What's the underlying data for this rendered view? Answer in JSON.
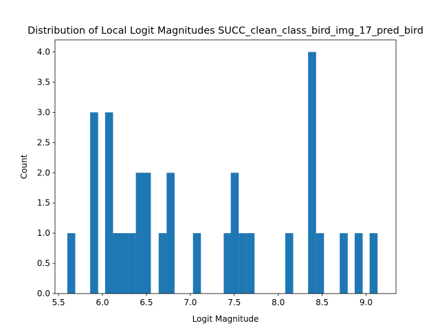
{
  "chart_data": {
    "type": "bar",
    "title": "Distribution of Local Logit Magnitudes SUCC_clean_class_bird_img_17_pred_bird",
    "xlabel": "Logit Magnitude",
    "ylabel": "Count",
    "xlim": [
      5.46,
      9.34
    ],
    "ylim": [
      0,
      4.2
    ],
    "bar_color": "#1f77b4",
    "bin_width": 0.0875,
    "bins": [
      {
        "x": 5.6,
        "count": 1
      },
      {
        "x": 5.86,
        "count": 3
      },
      {
        "x": 6.03,
        "count": 3
      },
      {
        "x": 6.12,
        "count": 1
      },
      {
        "x": 6.2,
        "count": 1
      },
      {
        "x": 6.29,
        "count": 1
      },
      {
        "x": 6.38,
        "count": 2
      },
      {
        "x": 6.46,
        "count": 2
      },
      {
        "x": 6.64,
        "count": 1
      },
      {
        "x": 6.73,
        "count": 2
      },
      {
        "x": 7.03,
        "count": 1
      },
      {
        "x": 7.38,
        "count": 1
      },
      {
        "x": 7.46,
        "count": 2
      },
      {
        "x": 7.55,
        "count": 1
      },
      {
        "x": 7.64,
        "count": 1
      },
      {
        "x": 8.08,
        "count": 1
      },
      {
        "x": 8.34,
        "count": 4
      },
      {
        "x": 8.43,
        "count": 1
      },
      {
        "x": 8.7,
        "count": 1
      },
      {
        "x": 8.87,
        "count": 1
      },
      {
        "x": 9.04,
        "count": 1
      }
    ],
    "x_ticks": [
      {
        "value": 5.5,
        "label": "5.5"
      },
      {
        "value": 6.0,
        "label": "6.0"
      },
      {
        "value": 6.5,
        "label": "6.5"
      },
      {
        "value": 7.0,
        "label": "7.0"
      },
      {
        "value": 7.5,
        "label": "7.5"
      },
      {
        "value": 8.0,
        "label": "8.0"
      },
      {
        "value": 8.5,
        "label": "8.5"
      },
      {
        "value": 9.0,
        "label": "9.0"
      }
    ],
    "y_ticks": [
      {
        "value": 0.0,
        "label": "0.0"
      },
      {
        "value": 0.5,
        "label": "0.5"
      },
      {
        "value": 1.0,
        "label": "1.0"
      },
      {
        "value": 1.5,
        "label": "1.5"
      },
      {
        "value": 2.0,
        "label": "2.0"
      },
      {
        "value": 2.5,
        "label": "2.5"
      },
      {
        "value": 3.0,
        "label": "3.0"
      },
      {
        "value": 3.5,
        "label": "3.5"
      },
      {
        "value": 4.0,
        "label": "4.0"
      }
    ],
    "grid": false,
    "legend": "none"
  }
}
